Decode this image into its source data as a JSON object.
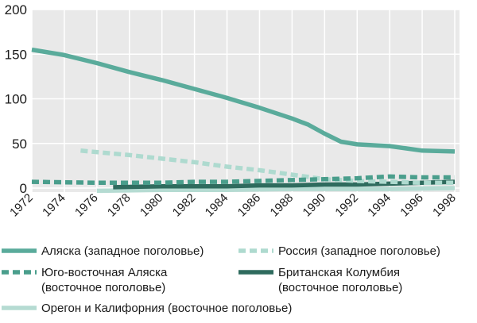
{
  "chart_data": {
    "type": "line",
    "title": "",
    "xlabel": "",
    "ylabel": "",
    "x_ticks": [
      "1972",
      "1974",
      "1976",
      "1978",
      "1980",
      "1982",
      "1984",
      "1986",
      "1988",
      "1990",
      "1992",
      "1994",
      "1996",
      "1998"
    ],
    "y_ticks": [
      0,
      50,
      100,
      150,
      200
    ],
    "xlim": [
      1972,
      1998
    ],
    "ylim": [
      0,
      200
    ],
    "grid": true,
    "legend_position": "bottom",
    "series": [
      {
        "name": "Аляска (западное поголовье)",
        "color": "#5aab9b",
        "style": "solid",
        "x": [
          1972,
          1974,
          1976,
          1978,
          1980,
          1982,
          1984,
          1986,
          1988,
          1989,
          1990,
          1991,
          1992,
          1994,
          1996,
          1998
        ],
        "y": [
          155,
          149,
          140,
          130,
          121,
          111,
          101,
          90,
          78,
          71,
          61,
          52,
          49,
          47,
          42,
          41
        ]
      },
      {
        "name": "Россия (западное поголовье)",
        "color": "#aedacf",
        "style": "dashed",
        "x": [
          1975,
          1978,
          1980,
          1982,
          1984,
          1986,
          1988,
          1990,
          1992,
          1994,
          1996,
          1998
        ],
        "y": [
          42,
          37,
          33,
          29,
          24,
          20,
          15,
          10,
          8,
          7,
          6,
          6
        ]
      },
      {
        "name": "Юго-восточная Аляска (восточное поголовье)",
        "color": "#4a9e8c",
        "style": "dashed",
        "x": [
          1972,
          1976,
          1978,
          1980,
          1982,
          1984,
          1986,
          1988,
          1990,
          1992,
          1994,
          1996,
          1998
        ],
        "y": [
          7,
          6,
          6,
          6,
          7,
          7,
          8,
          9,
          10,
          11,
          13,
          12,
          12
        ]
      },
      {
        "name": "Британская Колумбия (восточное поголовье)",
        "color": "#2f6b5e",
        "style": "solid",
        "x": [
          1977,
          1980,
          1982,
          1984,
          1986,
          1988,
          1990,
          1992,
          1994,
          1996,
          1998
        ],
        "y": [
          1,
          2,
          2,
          2,
          3,
          3,
          4,
          4,
          5,
          6,
          7
        ]
      },
      {
        "name": "Орегон и Калифорния (восточное поголовье)",
        "color": "#b5dbd2",
        "style": "solid",
        "x": [
          1976,
          1980,
          1984,
          1988,
          1990,
          1994,
          1998
        ],
        "y": [
          -3,
          -2,
          -2,
          -1,
          -1,
          -1,
          0
        ]
      }
    ]
  },
  "legend": [
    {
      "label_lines": [
        "Аляска (западное поголовье)"
      ]
    },
    {
      "label_lines": [
        "Россия (западное поголовье)"
      ]
    },
    {
      "label_lines": [
        "Юго-восточная Аляска",
        "(восточное поголовье)"
      ]
    },
    {
      "label_lines": [
        "Британская Колумбия",
        "(восточное поголовье)"
      ]
    },
    {
      "label_lines": [
        "Орегон и Калифорния (восточное поголовье)"
      ]
    }
  ]
}
